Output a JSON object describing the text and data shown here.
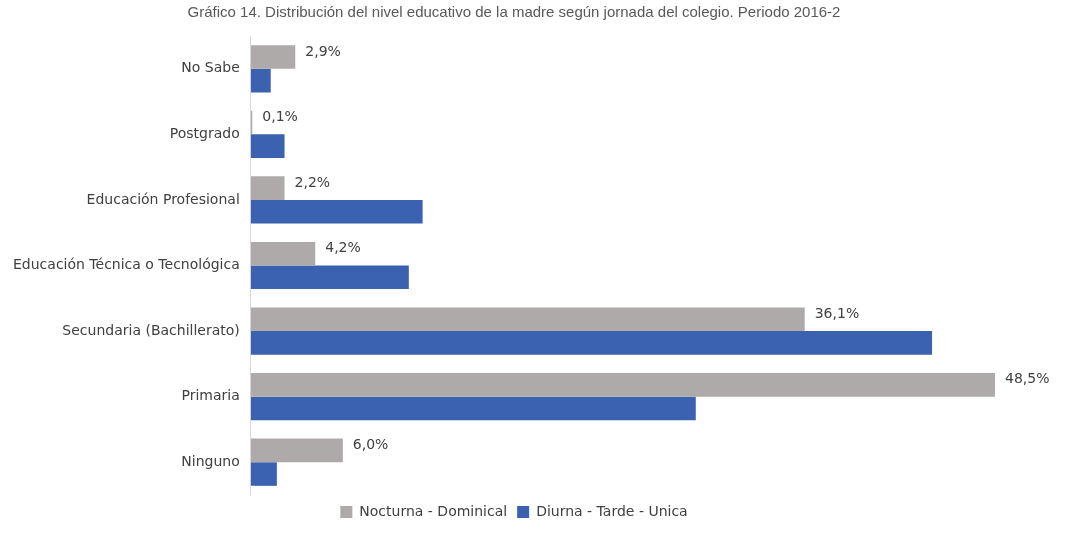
{
  "chart_data": {
    "type": "bar",
    "orientation": "horizontal",
    "title": "Gráfico 14. Distribución del nivel educativo de la madre según jornada del colegio. Periodo 2016-2",
    "categories": [
      "No Sabe",
      "Postgrado",
      "Educación Profesional",
      "Educación Técnica o Tecnológica",
      "Secundaria (Bachillerato)",
      "Primaria",
      "Ninguno"
    ],
    "series": [
      {
        "name": "Nocturna - Dominical",
        "color": "#aeaaaa",
        "values": [
          2.9,
          0.1,
          2.2,
          4.2,
          36.1,
          48.5,
          6.0
        ],
        "value_labels": [
          "2,9%",
          "0,1%",
          "2,2%",
          "4,2%",
          "36,1%",
          "48,5%",
          "6,0%"
        ]
      },
      {
        "name": "Diurna - Tarde - Unica",
        "color": "#3a62b0",
        "values": [
          1.3,
          2.2,
          11.2,
          10.3,
          44.4,
          29.0,
          1.7
        ]
      }
    ],
    "tick_labels": "y",
    "legend": "bottom"
  }
}
